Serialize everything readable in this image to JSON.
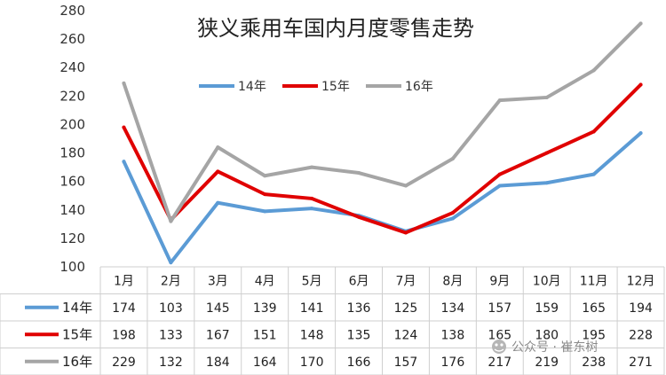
{
  "chart_data": {
    "type": "line",
    "title": "狭义乘用车国内月度零售走势",
    "categories": [
      "1月",
      "2月",
      "3月",
      "4月",
      "5月",
      "6月",
      "7月",
      "8月",
      "9月",
      "10月",
      "11月",
      "12月"
    ],
    "ylim": [
      100,
      280
    ],
    "yticks": [
      100,
      120,
      140,
      160,
      180,
      200,
      220,
      240,
      260,
      280
    ],
    "grid": false,
    "legend_position": "top-center",
    "data_table": true,
    "series": [
      {
        "name": "14年",
        "color": "#5b9bd5",
        "values": [
          174,
          103,
          145,
          139,
          141,
          136,
          125,
          134,
          157,
          159,
          165,
          194
        ]
      },
      {
        "name": "15年",
        "color": "#e00000",
        "values": [
          198,
          133,
          167,
          151,
          148,
          135,
          124,
          138,
          165,
          180,
          195,
          228
        ]
      },
      {
        "name": "16年",
        "color": "#a5a5a5",
        "values": [
          229,
          132,
          184,
          164,
          170,
          166,
          157,
          176,
          217,
          219,
          238,
          271
        ]
      }
    ]
  },
  "watermark": {
    "icon": "wechat-official-account-icon",
    "text": "公众号 · 崔东树"
  }
}
